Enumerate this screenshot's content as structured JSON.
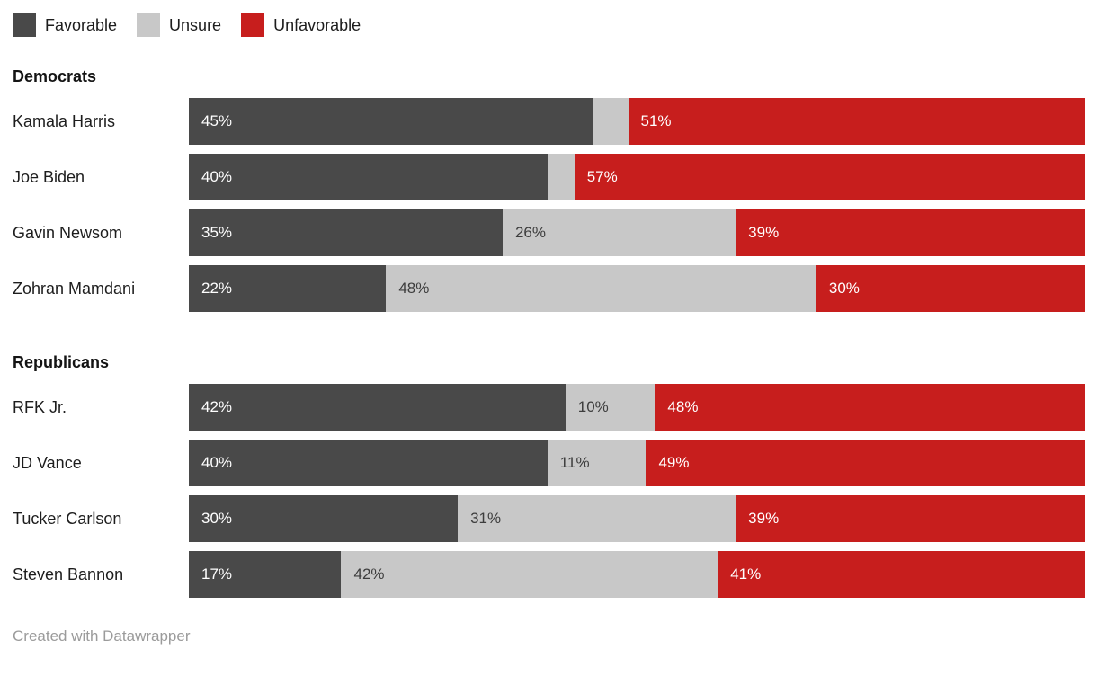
{
  "legend": {
    "items": [
      {
        "label": "Favorable",
        "color": "#494949"
      },
      {
        "label": "Unsure",
        "color": "#c8c8c8"
      },
      {
        "label": "Unfavorable",
        "color": "#c71e1d"
      }
    ]
  },
  "footer": {
    "text": "Created with Datawrapper"
  },
  "chart_data": {
    "type": "bar",
    "stacked": true,
    "orientation": "horizontal",
    "xlim": [
      0,
      100
    ],
    "grid": false,
    "legend_position": "top",
    "series_names": [
      "Favorable",
      "Unsure",
      "Unfavorable"
    ],
    "series_colors": [
      "#494949",
      "#c8c8c8",
      "#c71e1d"
    ],
    "series_label_colors": [
      "#ffffff",
      "#3d3d3d",
      "#ffffff"
    ],
    "sections": [
      {
        "title": "Democrats",
        "rows": [
          {
            "name": "Kamala Harris",
            "values": [
              45,
              4,
              51
            ],
            "labels": [
              "45%",
              "",
              "51%"
            ]
          },
          {
            "name": "Joe Biden",
            "values": [
              40,
              3,
              57
            ],
            "labels": [
              "40%",
              "",
              "57%"
            ]
          },
          {
            "name": "Gavin Newsom",
            "values": [
              35,
              26,
              39
            ],
            "labels": [
              "35%",
              "26%",
              "39%"
            ]
          },
          {
            "name": "Zohran Mamdani",
            "values": [
              22,
              48,
              30
            ],
            "labels": [
              "22%",
              "48%",
              "30%"
            ]
          }
        ]
      },
      {
        "title": "Republicans",
        "rows": [
          {
            "name": "RFK Jr.",
            "values": [
              42,
              10,
              48
            ],
            "labels": [
              "42%",
              "10%",
              "48%"
            ]
          },
          {
            "name": "JD Vance",
            "values": [
              40,
              11,
              49
            ],
            "labels": [
              "40%",
              "11%",
              "49%"
            ]
          },
          {
            "name": "Tucker Carlson",
            "values": [
              30,
              31,
              39
            ],
            "labels": [
              "30%",
              "31%",
              "39%"
            ]
          },
          {
            "name": "Steven Bannon",
            "values": [
              17,
              42,
              41
            ],
            "labels": [
              "17%",
              "42%",
              "41%"
            ]
          }
        ]
      }
    ]
  }
}
